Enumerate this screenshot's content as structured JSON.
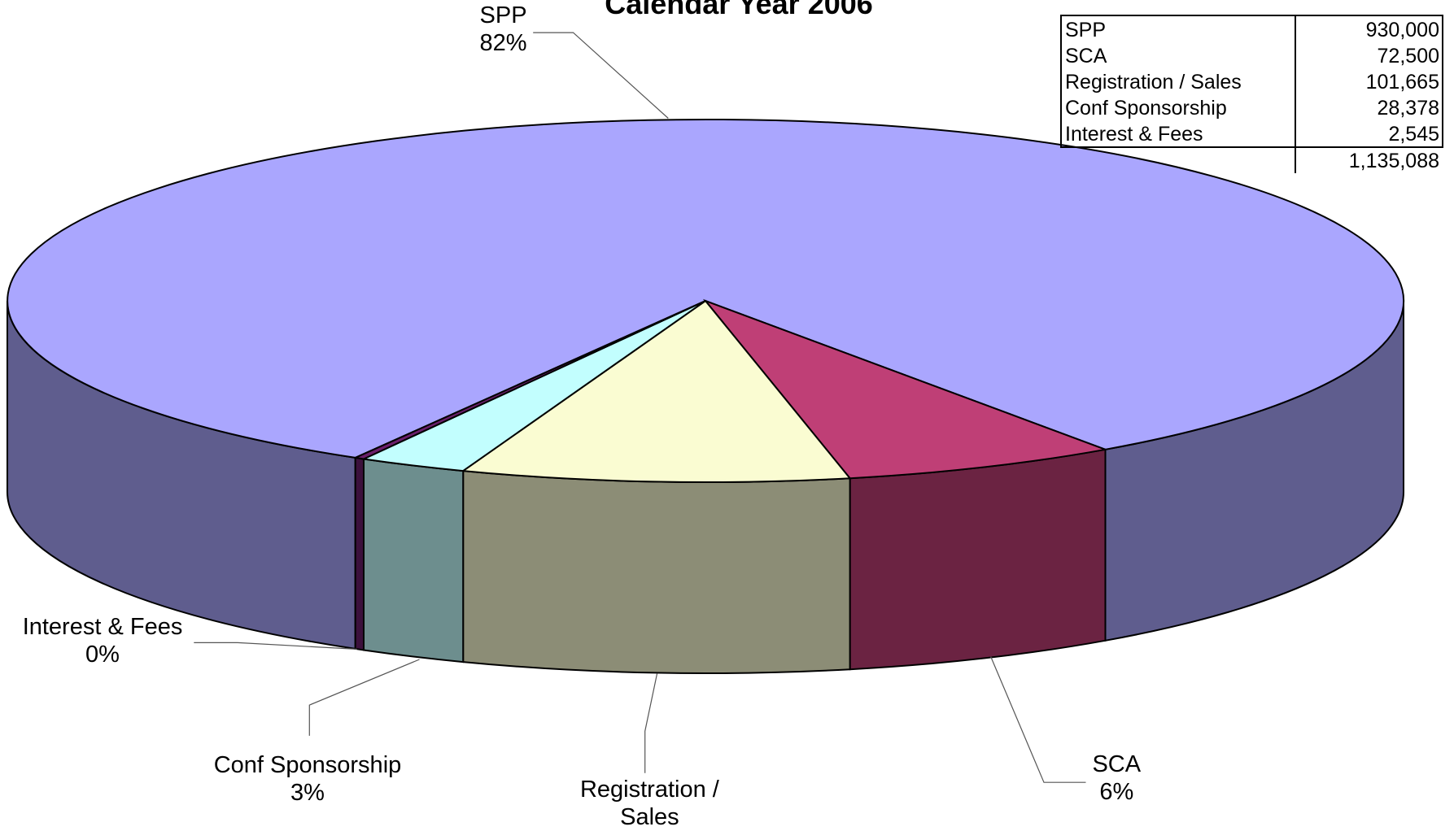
{
  "chart_data": {
    "type": "pie3d",
    "title": "Calendar Year 2006",
    "categories": [
      "SPP",
      "SCA",
      "Registration / Sales",
      "Conf Sponsorship",
      "Interest & Fees"
    ],
    "values": [
      81.93,
      6.39,
      8.96,
      2.5,
      0.22
    ],
    "value_labels": [
      "82%",
      "6%",
      null,
      "3%",
      "0%"
    ],
    "colors": [
      "#aaa6fe",
      "#bf3f76",
      "#fafcd2",
      "#c2fefe",
      "#6b1f6b"
    ]
  },
  "table": {
    "rows": [
      [
        "SPP",
        "930,000"
      ],
      [
        "SCA",
        "72,500"
      ],
      [
        "Registration / Sales",
        "101,665"
      ],
      [
        "Conf Sponsorship",
        "28,378"
      ],
      [
        "Interest & Fees",
        "2,545"
      ]
    ],
    "total": "1,135,088"
  }
}
